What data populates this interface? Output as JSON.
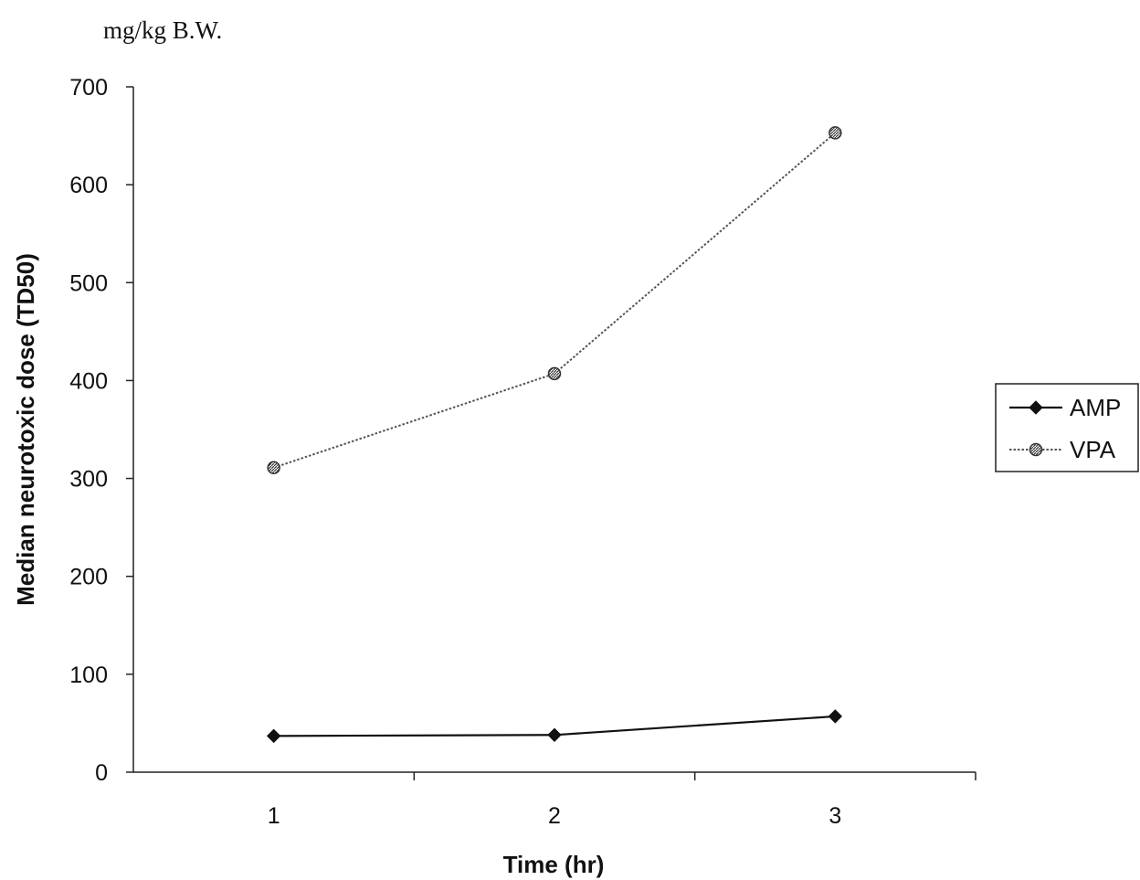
{
  "chart_data": {
    "type": "line",
    "unit_note": "mg/kg B.W.",
    "xlabel": "Time (hr)",
    "ylabel": "Median neurotoxic dose (TD50)",
    "x": [
      1,
      2,
      3
    ],
    "x_tick_labels": [
      "1",
      "2",
      "3"
    ],
    "xlim": [
      0.5,
      3.5
    ],
    "ylim": [
      0,
      700
    ],
    "y_tick_labels": [
      "0",
      "100",
      "200",
      "300",
      "400",
      "500",
      "600",
      "700"
    ],
    "grid": false,
    "legend_position": "right",
    "series": [
      {
        "name": "AMP",
        "values": [
          37,
          38,
          57
        ],
        "color": "#111111",
        "line_style": "solid",
        "marker": "diamond"
      },
      {
        "name": "VPA",
        "values": [
          311,
          407,
          653
        ],
        "color": "#555555",
        "line_style": "dotted",
        "marker": "hatched-circle"
      }
    ]
  }
}
